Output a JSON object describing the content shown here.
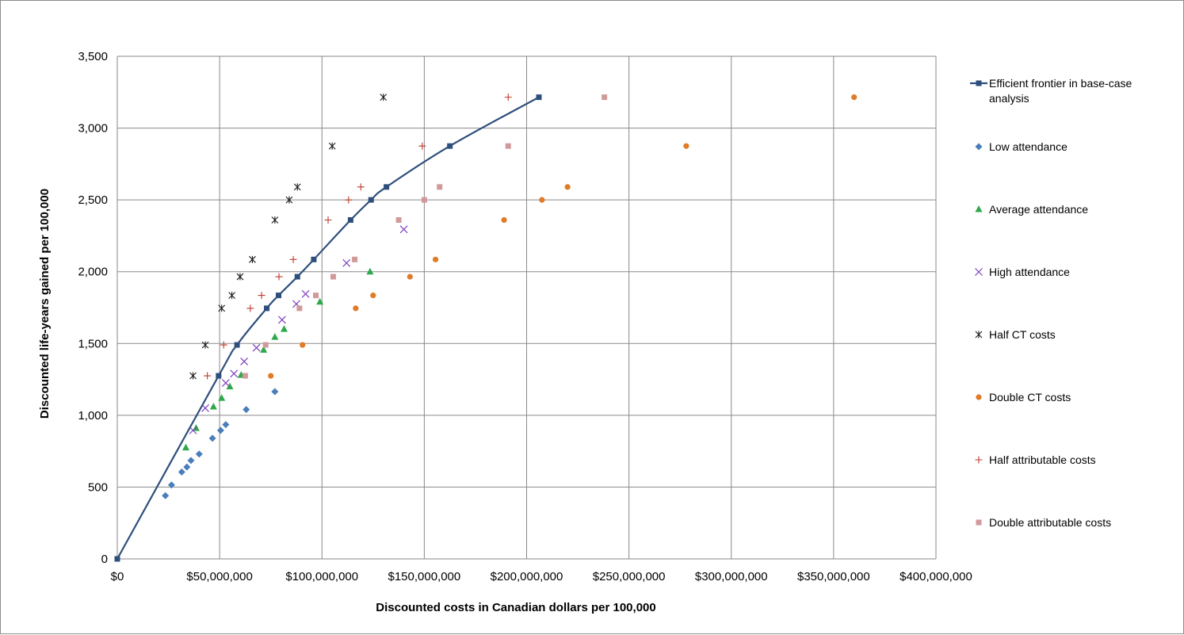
{
  "chart_data": {
    "type": "scatter",
    "xlabel": "Discounted costs in Canadian dollars per 100,000",
    "ylabel": "Discounted life-years gained per 100,000",
    "xlim": [
      0,
      400000000
    ],
    "ylim": [
      0,
      3500
    ],
    "grid": true,
    "legend_position": "right",
    "x_tick_values": [
      0,
      50000000,
      100000000,
      150000000,
      200000000,
      250000000,
      300000000,
      350000000,
      400000000
    ],
    "x_tick_labels": [
      "$0",
      "$50,000,000",
      "$100,000,000",
      "$150,000,000",
      "$200,000,000",
      "$250,000,000",
      "$300,000,000",
      "$350,000,000",
      "$400,000,000"
    ],
    "y_tick_values": [
      0,
      500,
      1000,
      1500,
      2000,
      2500,
      3000,
      3500
    ],
    "y_tick_labels": [
      "0",
      "500",
      "1,000",
      "1,500",
      "2,000",
      "2,500",
      "3,000",
      "3,500"
    ],
    "series": [
      {
        "name": "Efficient frontier in base-case analysis",
        "marker": "square-line",
        "color": "#2e4f7c",
        "points": [
          [
            0,
            0
          ],
          [
            49500000,
            1275
          ],
          [
            58500000,
            1490
          ],
          [
            73000000,
            1745
          ],
          [
            78800000,
            1835
          ],
          [
            88000000,
            1965
          ],
          [
            96000000,
            2085
          ],
          [
            114000000,
            2360
          ],
          [
            124000000,
            2500
          ],
          [
            131500000,
            2590
          ],
          [
            162500000,
            2875
          ],
          [
            206000000,
            3215
          ]
        ]
      },
      {
        "name": "Low attendance",
        "marker": "diamond",
        "color": "#4a7ebb",
        "points": [
          [
            23500000,
            440
          ],
          [
            26500000,
            515
          ],
          [
            31500000,
            605
          ],
          [
            34000000,
            640
          ],
          [
            36000000,
            685
          ],
          [
            40000000,
            730
          ],
          [
            46500000,
            840
          ],
          [
            50500000,
            895
          ],
          [
            53000000,
            935
          ],
          [
            63000000,
            1040
          ],
          [
            77000000,
            1165
          ]
        ]
      },
      {
        "name": "Average attendance",
        "marker": "triangle",
        "color": "#2ea84a",
        "points": [
          [
            33500000,
            775
          ],
          [
            38500000,
            910
          ],
          [
            47000000,
            1060
          ],
          [
            51000000,
            1120
          ],
          [
            55000000,
            1200
          ],
          [
            60500000,
            1280
          ],
          [
            71500000,
            1455
          ],
          [
            77000000,
            1545
          ],
          [
            81500000,
            1600
          ],
          [
            99000000,
            1790
          ],
          [
            123500000,
            2000
          ]
        ]
      },
      {
        "name": "High attendance",
        "marker": "x",
        "color": "#7f3fbf",
        "points": [
          [
            37000000,
            895
          ],
          [
            43000000,
            1050
          ],
          [
            53000000,
            1225
          ],
          [
            57000000,
            1290
          ],
          [
            62000000,
            1375
          ],
          [
            68000000,
            1470
          ],
          [
            80500000,
            1665
          ],
          [
            87500000,
            1775
          ],
          [
            92000000,
            1845
          ],
          [
            112000000,
            2060
          ],
          [
            140000000,
            2295
          ]
        ]
      },
      {
        "name": "Half CT costs",
        "marker": "asterisk",
        "color": "#1a1a1a",
        "points": [
          [
            37000000,
            1275
          ],
          [
            43000000,
            1490
          ],
          [
            51000000,
            1745
          ],
          [
            56000000,
            1835
          ],
          [
            60000000,
            1965
          ],
          [
            66000000,
            2085
          ],
          [
            77000000,
            2360
          ],
          [
            84000000,
            2500
          ],
          [
            88000000,
            2590
          ],
          [
            105000000,
            2875
          ],
          [
            130000000,
            3215
          ]
        ]
      },
      {
        "name": "Double CT costs",
        "marker": "circle",
        "color": "#e07b28",
        "points": [
          [
            75000000,
            1275
          ],
          [
            90500000,
            1490
          ],
          [
            116500000,
            1745
          ],
          [
            125000000,
            1835
          ],
          [
            143000000,
            1965
          ],
          [
            155500000,
            2085
          ],
          [
            189000000,
            2360
          ],
          [
            207500000,
            2500
          ],
          [
            220000000,
            2590
          ],
          [
            278000000,
            2875
          ],
          [
            360000000,
            3215
          ]
        ]
      },
      {
        "name": "Half attributable costs",
        "marker": "plus",
        "color": "#c0392b",
        "points": [
          [
            44000000,
            1275
          ],
          [
            52000000,
            1490
          ],
          [
            65000000,
            1745
          ],
          [
            70500000,
            1835
          ],
          [
            79000000,
            1965
          ],
          [
            86000000,
            2085
          ],
          [
            103000000,
            2360
          ],
          [
            113000000,
            2500
          ],
          [
            119000000,
            2590
          ],
          [
            149000000,
            2875
          ],
          [
            191000000,
            3215
          ]
        ]
      },
      {
        "name": "Double attributable costs",
        "marker": "square",
        "color": "#d19a9a",
        "points": [
          [
            62500000,
            1275
          ],
          [
            72500000,
            1490
          ],
          [
            89000000,
            1745
          ],
          [
            97000000,
            1835
          ],
          [
            105500000,
            1965
          ],
          [
            116000000,
            2085
          ],
          [
            137500000,
            2360
          ],
          [
            150000000,
            2500
          ],
          [
            157500000,
            2590
          ],
          [
            191000000,
            2875
          ],
          [
            238000000,
            3215
          ]
        ]
      }
    ]
  }
}
